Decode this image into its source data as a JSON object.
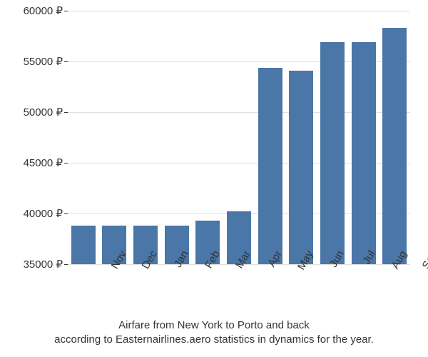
{
  "chart": {
    "type": "bar",
    "categories": [
      "Nov",
      "Dec",
      "Jan",
      "Feb",
      "Mar",
      "Apr",
      "May",
      "Jun",
      "Jul",
      "Aug",
      "Sep"
    ],
    "values": [
      38800,
      38800,
      38800,
      38800,
      39300,
      40200,
      54400,
      54100,
      56900,
      56900,
      58300
    ],
    "bar_color": "#4a76a8",
    "background_color": "#ffffff",
    "grid_color": "#e0e0e0",
    "text_color": "#333333",
    "ylim": [
      35000,
      60000
    ],
    "yticks": [
      35000,
      40000,
      45000,
      50000,
      55000,
      60000
    ],
    "ytick_labels": [
      "35000 ₽",
      "40000 ₽",
      "45000 ₽",
      "50000 ₽",
      "55000 ₽",
      "60000 ₽"
    ],
    "currency_symbol": "₽",
    "bar_width": 0.78,
    "fontsize_axis": 15,
    "fontsize_caption": 15,
    "xlabel_rotation_deg": -60
  },
  "caption": {
    "line1": "Airfare from New York to Porto and back",
    "line2": "according to Easternairlines.aero statistics in dynamics for the year."
  }
}
